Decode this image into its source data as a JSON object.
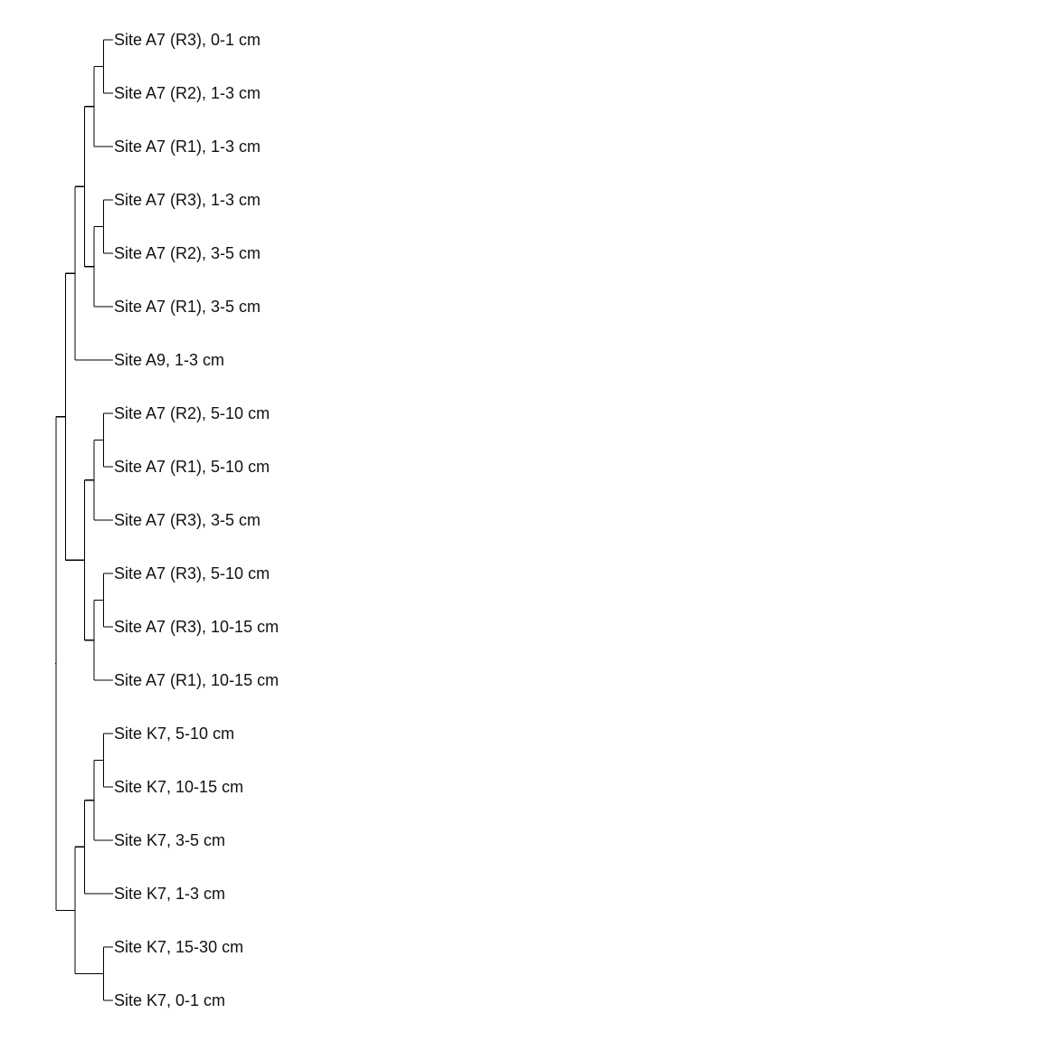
{
  "diagram": {
    "type": "dendrogram",
    "orientation": "left-to-right",
    "line_color": "#000000",
    "label_color": "#111111",
    "leaves": [
      "Site A7 (R3), 0-1 cm",
      "Site A7 (R2), 1-3 cm",
      "Site A7 (R1), 1-3 cm",
      "Site A7 (R3), 1-3 cm",
      "Site A7 (R2), 3-5 cm",
      "Site A7 (R1), 3-5 cm",
      "Site A9, 1-3 cm",
      "Site A7 (R2), 5-10 cm",
      "Site A7 (R1), 5-10 cm",
      "Site A7 (R3), 3-5 cm",
      "Site A7 (R3), 5-10 cm",
      "Site A7 (R3), 10-15 cm",
      "Site A7 (R1), 10-15 cm",
      "Site K7, 5-10 cm",
      "Site K7, 10-15 cm",
      "Site K7, 3-5 cm",
      "Site K7, 1-3 cm",
      "Site K7, 15-30 cm",
      "Site K7, 0-1 cm"
    ],
    "tree": {
      "h": 0,
      "c": [
        {
          "h": 1,
          "c": [
            {
              "h": 2,
              "c": [
                {
                  "h": 3,
                  "c": [
                    {
                      "h": 4,
                      "c": [
                        {
                          "h": 5,
                          "c": [
                            {
                              "leaf": 0
                            },
                            {
                              "leaf": 1
                            }
                          ]
                        },
                        {
                          "leaf": 2
                        }
                      ]
                    },
                    {
                      "h": 4,
                      "c": [
                        {
                          "h": 5,
                          "c": [
                            {
                              "leaf": 3
                            },
                            {
                              "leaf": 4
                            }
                          ]
                        },
                        {
                          "leaf": 5
                        }
                      ]
                    }
                  ]
                },
                {
                  "leaf": 6
                }
              ]
            },
            {
              "h": 3,
              "c": [
                {
                  "h": 4,
                  "c": [
                    {
                      "h": 5,
                      "c": [
                        {
                          "leaf": 7
                        },
                        {
                          "leaf": 8
                        }
                      ]
                    },
                    {
                      "leaf": 9
                    }
                  ]
                },
                {
                  "h": 4,
                  "c": [
                    {
                      "h": 5,
                      "c": [
                        {
                          "leaf": 10
                        },
                        {
                          "leaf": 11
                        }
                      ]
                    },
                    {
                      "leaf": 12
                    }
                  ]
                }
              ]
            }
          ]
        },
        {
          "h": 2,
          "c": [
            {
              "h": 3,
              "c": [
                {
                  "h": 4,
                  "c": [
                    {
                      "h": 5,
                      "c": [
                        {
                          "leaf": 13
                        },
                        {
                          "leaf": 14
                        }
                      ]
                    },
                    {
                      "leaf": 15
                    }
                  ]
                },
                {
                  "leaf": 16
                }
              ]
            },
            {
              "h": 5,
              "c": [
                {
                  "leaf": 17
                },
                {
                  "leaf": 18
                }
              ]
            }
          ]
        }
      ]
    }
  }
}
